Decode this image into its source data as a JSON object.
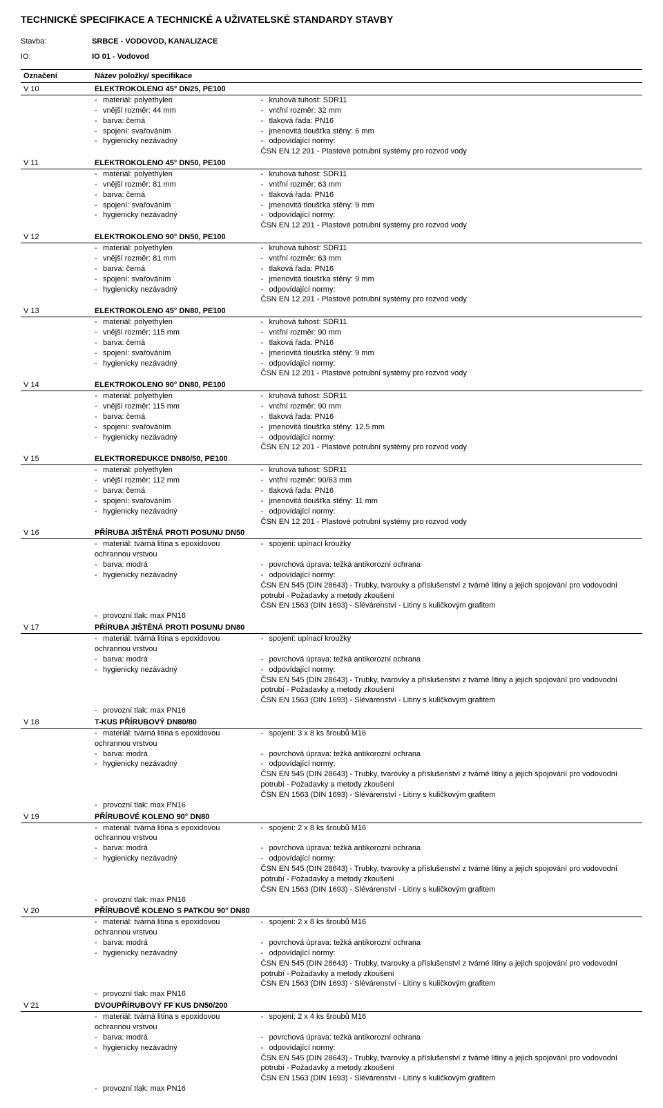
{
  "document": {
    "title": "TECHNICKÉ SPECIFIKACE A TECHNICKÉ A UŽIVATELSKÉ STANDARDY STAVBY",
    "stavba_label": "Stavba:",
    "stavba_value": "SRBCE - VODOVOD, KANALIZACE",
    "io_label": "IO:",
    "io_value": "IO 01 - Vodovod",
    "col_code": "Označení",
    "col_name": "Název položky/ specifikace",
    "std_csn_plast": "ČSN EN 12 201 - Plastové potrubní systémy pro rozvod vody",
    "std_csn_545": "ČSN EN 545 (DIN 28643) - Trubky, tvarovky a příslušenství z tvárné litiny a jejich spojování pro vodovodní potrubí - Požadavky a metody zkoušení",
    "std_csn_1563": "ČSN EN 1563 (DIN 1693) - Slévárenství - Litiny s kuličkovým grafitem"
  },
  "items": [
    {
      "code": "V 10",
      "title": "ELEKTROKOLENO 45° DN25, PE100",
      "left": [
        "materiál: polyethylen",
        "vnější rozměr: 44 mm",
        "barva: černá",
        "spojení: svařováním",
        "hygienicky nezávadný"
      ],
      "right": [
        "kruhová tuhost: SDR11",
        "vntřní rozměr: 32 mm",
        "tlaková řada: PN16",
        "jmenovitá tloušťka stěny: 6 mm",
        "odpovídající normy:"
      ],
      "right_tail": [
        "ČSN EN 12 201 - Plastové potrubní systémy pro rozvod vody"
      ]
    },
    {
      "code": "V 11",
      "title": "ELEKTROKOLENO 45° DN50, PE100",
      "left": [
        "materiál: polyethylen",
        "vnější rozměr: 81 mm",
        "barva: černá",
        "spojení: svařováním",
        "hygienicky nezávadný"
      ],
      "right": [
        "kruhová tuhost: SDR11",
        "vntřní rozměr: 63 mm",
        "tlaková řada: PN16",
        "jmenovitá tloušťka stěny: 9 mm",
        "odpovídající normy:"
      ],
      "right_tail": [
        "ČSN EN 12 201 - Plastové potrubní systémy pro rozvod vody"
      ]
    },
    {
      "code": "V 12",
      "title": "ELEKTROKOLENO 90° DN50, PE100",
      "left": [
        "materiál: polyethylen",
        "vnější rozměr: 81 mm",
        "barva: černá",
        "spojení: svařováním",
        "hygienicky nezávadný"
      ],
      "right": [
        "kruhová tuhost: SDR11",
        "vntřní rozměr: 63 mm",
        "tlaková řada: PN16",
        "jmenovitá tloušťka stěny: 9 mm",
        "odpovídající normy:"
      ],
      "right_tail": [
        "ČSN EN 12 201 - Plastové potrubní systémy pro rozvod vody"
      ]
    },
    {
      "code": "V 13",
      "title": "ELEKTROKOLENO 45° DN80, PE100",
      "left": [
        "materiál: polyethylen",
        "vnější rozměr: 115 mm",
        "barva: černá",
        "spojení: svařováním",
        "hygienicky nezávadný"
      ],
      "right": [
        "kruhová tuhost: SDR11",
        "vntřní rozměr: 90 mm",
        "tlaková řada: PN16",
        "jmenovitá tloušťka stěny: 9 mm",
        "odpovídající normy:"
      ],
      "right_tail": [
        "ČSN EN 12 201 - Plastové potrubní systémy pro rozvod vody"
      ]
    },
    {
      "code": "V 14",
      "title": "ELEKTROKOLENO 90° DN80, PE100",
      "left": [
        "materiál: polyethylen",
        "vnější rozměr: 115 mm",
        "barva: černá",
        "spojení: svařováním",
        "hygienicky nezávadný"
      ],
      "right": [
        "kruhová tuhost: SDR11",
        "vntřní rozměr: 90 mm",
        "tlaková řada: PN16",
        "jmenovitá tloušťka stěny: 12.5 mm",
        "odpovídající normy:"
      ],
      "right_tail": [
        "ČSN EN 12 201 - Plastové potrubní systémy pro rozvod vody"
      ]
    },
    {
      "code": "V 15",
      "title": "ELEKTROREDUKCE DN80/50, PE100",
      "left": [
        "materiál: polyethylen",
        "vnější rozměr: 112 mm",
        "barva: černá",
        "spojení: svařováním",
        "hygienicky nezávadný"
      ],
      "right": [
        "kruhová tuhost: SDR11",
        "vntřní rozměr: 90/63 mm",
        "tlaková řada: PN16",
        "jmenovitá tloušťka stěny: 11 mm",
        "odpovídající normy:"
      ],
      "right_tail": [
        "ČSN EN 12 201 - Plastové potrubní systémy pro rozvod vody"
      ]
    },
    {
      "code": "V 16",
      "title": "PŘÍRUBA JIŠTĚNÁ PROTI POSUNU DN50",
      "left": [
        "materiál: tvárná litina s epoxidovou ochrannou vrstvou",
        "barva: modrá",
        "hygienicky nezávadný",
        "",
        "",
        "provozní tlak: max PN16"
      ],
      "right": [
        "spojení: upínací kroužky",
        "povrchová úprava: težká antikorozní ochrana",
        "odpovídající normy:"
      ],
      "right_tail": [
        "ČSN EN 545 (DIN 28643) - Trubky, tvarovky a příslušenství z tvárné litiny a jejich spojování pro vodovodní potrubí - Požadavky a metody zkoušení",
        "ČSN EN 1563 (DIN 1693) - Slévárenství - Litiny s kuličkovým grafitem"
      ]
    },
    {
      "code": "V 17",
      "title": "PŘÍRUBA JIŠTĚNÁ PROTI POSUNU DN80",
      "left": [
        "materiál: tvárná litina s epoxidovou ochrannou vrstvou",
        "barva: modrá",
        "hygienicky nezávadný",
        "",
        "",
        "provozní tlak: max PN16"
      ],
      "right": [
        "spojení: upínací kroužky",
        "povrchová úprava: težká antikorozní ochrana",
        "odpovídající normy:"
      ],
      "right_tail": [
        "ČSN EN 545 (DIN 28643) - Trubky, tvarovky a příslušenství z tvárné litiny a jejich spojování pro vodovodní potrubí - Požadavky a metody zkoušení",
        "ČSN EN 1563 (DIN 1693) - Slévárenství - Litiny s kuličkovým grafitem"
      ]
    },
    {
      "code": "V 18",
      "title": "T-KUS PŘÍRUBOVÝ DN80/80",
      "left": [
        "materiál: tvárná litina s epoxidovou ochrannou vrstvou",
        "barva: modrá",
        "hygienicky nezávadný",
        "",
        "",
        "provozní tlak: max PN16"
      ],
      "right": [
        "spojení: 3 x 8 ks šroubů M16",
        "povrchová úprava: težká antikorozní ochrana",
        "odpovídající normy:"
      ],
      "right_tail": [
        "ČSN EN 545 (DIN 28643) - Trubky, tvarovky a příslušenství z tvárné litiny a jejich spojování pro vodovodní potrubí - Požadavky a metody zkoušení",
        "ČSN EN 1563 (DIN 1693) - Slévárenství - Litiny s kuličkovým grafitem"
      ]
    },
    {
      "code": "V 19",
      "title": "PŘÍRUBOVÉ KOLENO  90°  DN80",
      "left": [
        "materiál: tvárná litina s epoxidovou ochrannou vrstvou",
        "barva: modrá",
        "hygienicky nezávadný",
        "",
        "",
        "provozní tlak: max PN16"
      ],
      "right": [
        "spojení: 2 x 8 ks šroubů M16",
        "povrchová úprava: težká antikorozní ochrana",
        "odpovídající normy:"
      ],
      "right_tail": [
        "ČSN EN 545 (DIN 28643) - Trubky, tvarovky a příslušenství z tvárné litiny a jejich spojování pro vodovodní potrubí - Požadavky a metody zkoušení",
        "ČSN EN 1563 (DIN 1693) - Slévárenství - Litiny s kuličkovým grafitem"
      ]
    },
    {
      "code": "V 20",
      "title": "PŘÍRUBOVÉ KOLENO S PATKOU 90°  DN80",
      "left": [
        "materiál: tvárná litina s epoxidovou ochrannou vrstvou",
        "barva: modrá",
        "hygienicky nezávadný",
        "",
        "",
        "provozní tlak: max PN16"
      ],
      "right": [
        "spojení: 2 x 8 ks šroubů M16",
        "povrchová úprava: težká antikorozní ochrana",
        "odpovídající normy:"
      ],
      "right_tail": [
        "ČSN EN 545 (DIN 28643) - Trubky, tvarovky a příslušenství z tvárné litiny a jejich spojování pro vodovodní potrubí - Požadavky a metody zkoušení",
        "ČSN EN 1563 (DIN 1693) - Slévárenství - Litiny s kuličkovým grafitem"
      ]
    },
    {
      "code": "V 21",
      "title": "DVOUPŘÍRUBOVÝ FF KUS DN50/200",
      "left": [
        "materiál: tvárná litina s epoxidovou ochrannou vrstvou",
        "barva: modrá",
        "hygienicky nezávadný",
        "",
        "",
        "provozní tlak: max PN16"
      ],
      "right": [
        "spojení: 2 x 4 ks šroubů M16",
        "povrchová úprava: težká antikorozní ochrana",
        "odpovídající normy:"
      ],
      "right_tail": [
        "ČSN EN 545 (DIN 28643) - Trubky, tvarovky a příslušenství z tvárné litiny a jejich spojování pro vodovodní potrubí - Požadavky a metody zkoušení",
        "ČSN EN 1563 (DIN 1693) - Slévárenství - Litiny s kuličkovým grafitem"
      ]
    }
  ],
  "style": {
    "text_color": "#000000",
    "bg_color": "#ffffff",
    "border_color": "#000000",
    "title_fontsize": 14,
    "body_fontsize": 11
  }
}
